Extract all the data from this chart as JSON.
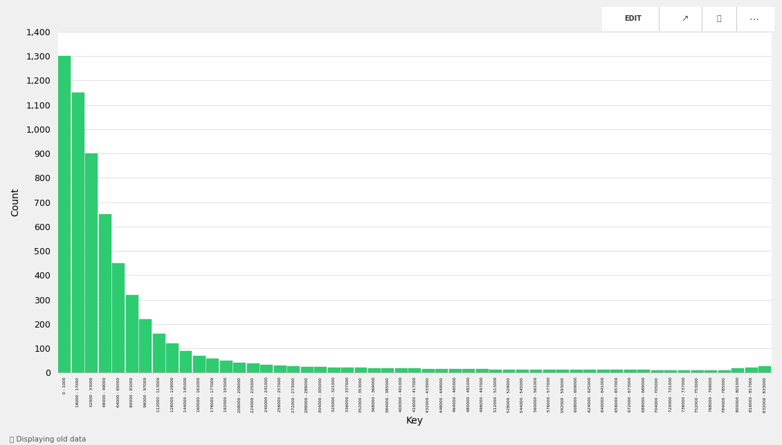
{
  "title": "",
  "xlabel": "Key",
  "ylabel": "Count",
  "bar_color": "#2ecc71",
  "bar_edge_color": "#27ae60",
  "background_color": "#ffffff",
  "fig_bg_color": "#f5f5f5",
  "ylim": [
    0,
    1400
  ],
  "yticks": [
    0,
    100,
    200,
    300,
    400,
    500,
    600,
    700,
    800,
    900,
    1000,
    1100,
    1200,
    1300,
    1400
  ],
  "footer_text": "Displaying old data",
  "grid_color": "#e0e0e0",
  "peak_value": 1300,
  "values": [
    1300,
    1150,
    900,
    650,
    450,
    320,
    220,
    160,
    120,
    90,
    70,
    58,
    50,
    42,
    37,
    33,
    30,
    27,
    25,
    23,
    22,
    21,
    20,
    19,
    18,
    17,
    17,
    16,
    16,
    15,
    15,
    15,
    14,
    14,
    14,
    13,
    13,
    13,
    13,
    12,
    12,
    12,
    12,
    12,
    11,
    11,
    11,
    11,
    11,
    11,
    18,
    22,
    28
  ],
  "bin_labels": [
    "0 - 1000",
    "16000 - 17000",
    "32000 - 33000",
    "48000 - 49000",
    "64000 - 65000",
    "80000 - 81000",
    "96000 - 97000",
    "112000 - 113000",
    "128000 - 129000",
    "144000 - 145000",
    "160000 - 161000",
    "176000 - 177000",
    "192000 - 193000",
    "208000 - 209000",
    "224000 - 225000",
    "240000 - 241000",
    "256000 - 257000",
    "272000 - 273000",
    "288000 - 289000",
    "304000 - 305000",
    "320000 - 321000",
    "336000 - 337000",
    "352000 - 353000",
    "368000 - 369000",
    "384000 - 385000",
    "400000 - 401000",
    "416000 - 417000",
    "432000 - 433000",
    "448000 - 449000",
    "464000 - 465000",
    "480000 - 481000",
    "496000 - 497000",
    "512000 - 513000",
    "528000 - 529000",
    "544000 - 545000",
    "560000 - 561000",
    "576000 - 577000",
    "592000 - 593000",
    "608000 - 609000",
    "624000 - 625000",
    "640000 - 641000",
    "656000 - 657000",
    "672000 - 673000",
    "688000 - 689000",
    "704000 - 705000",
    "720000 - 721000",
    "736000 - 737000",
    "752000 - 753000",
    "768000 - 769000",
    "784000 - 785000",
    "800000 - 801000",
    "816000 - 817000",
    "832000 - 833000"
  ]
}
